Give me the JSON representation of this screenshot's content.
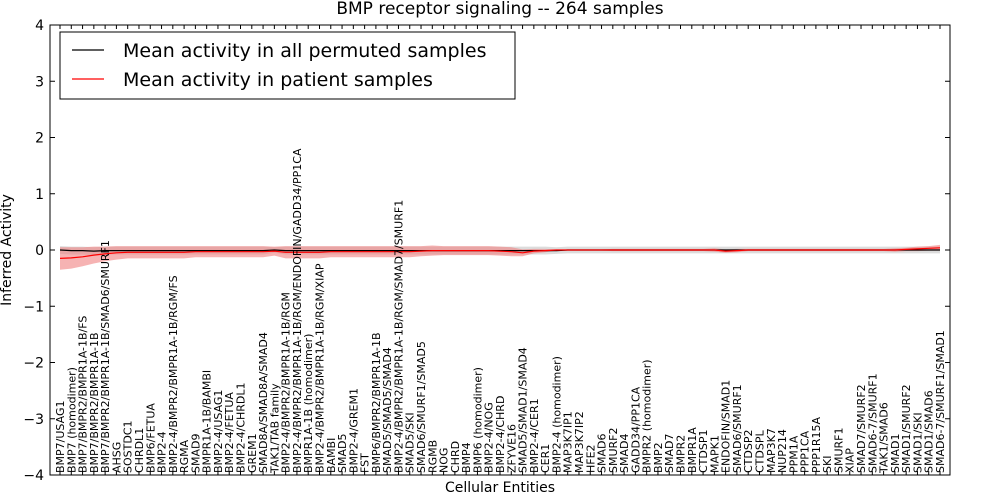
{
  "chart_data": {
    "type": "line",
    "title": "BMP receptor signaling -- 264 samples",
    "xlabel": "Cellular Entities",
    "ylabel": "Inferred Activity",
    "ylim": [
      -4,
      4
    ],
    "yticks": [
      -4,
      -3,
      -2,
      -1,
      0,
      1,
      2,
      3,
      4
    ],
    "legend_position": "top-left",
    "categories": [
      "BMP7/USAG1",
      "BMP7 (homodimer)",
      "BMP7/BMPR2/BMPR1A-1B/FS",
      "BMP7/BMPR2/BMPR1A-1B",
      "BMP7/BMPR2/BMPR1A-1B/SMAD6/SMURF1",
      "AHSG",
      "SOSTDC1",
      "CHRDL1",
      "BMP6/FETUA",
      "BMP2-4",
      "BMP2-4/BMPR2/BMPR1A-1B/RGM/FS",
      "RGMA",
      "SMAD9",
      "BMPR1A-1B/BAMBI",
      "BMP2-4/USAG1",
      "BMP2-4/FETUA",
      "BMP2-4/CHRDL1",
      "GREM1",
      "SMAD8A/SMAD8A/SMAD4",
      "TAK1/TAB family",
      "BMP2-4/BMPR2/BMPR1A-1B/RGM",
      "BMP2-4/BMPR2/BMPR1A-1B/RGM/ENDOFIN/GADD34/PP1CA",
      "BMPR1A-1B (homodimer)",
      "BMP2-4/BMPR2/BMPR1A-1B/RGM/XIAP",
      "BAMBI",
      "SMAD5",
      "BMP2-4/GREM1",
      "FST",
      "BMP6/BMPR2/BMPR1A-1B",
      "SMAD5/SMAD5/SMAD4",
      "BMP2-4/BMPR2/BMPR1A-1B/RGM/SMAD7/SMURF1",
      "SMAD5/SKI",
      "SMAD6/SMURF1/SMAD5",
      "RGMB",
      "NOG",
      "CHRD",
      "BMP4",
      "BMP6 (homodimer)",
      "BMP2-4/NOG",
      "BMP2-4/CHRD",
      "ZFYVE16",
      "SMAD5/SMAD1/SMAD4",
      "BMP2-4/CER1",
      "CER1",
      "BMP2-4 (homodimer)",
      "MAP3K7IP1",
      "MAP3K7IP2",
      "HFE2",
      "SMAD6",
      "SMURF2",
      "SMAD4",
      "GADD34/PP1CA",
      "BMPR2 (homodimer)",
      "BMP2",
      "SMAD7",
      "BMPR2",
      "BMPR1A",
      "CTDSP1",
      "MAPK1",
      "ENDOFIN/SMAD1",
      "SMAD6/SMURF1",
      "CTDSP2",
      "CTDSPL",
      "MAP3K7",
      "NUP214",
      "PPM1A",
      "PPP1CA",
      "PPP1R15A",
      "SKI",
      "SMURF1",
      "XIAP",
      "SMAD7/SMURF2",
      "SMAD6-7/SMURF1",
      "TAK1/SMAD6",
      "SMAD1",
      "SMAD1/SMURF2",
      "SMAD1/SKI",
      "SMAD1/SMAD6",
      "SMAD6-7/SMURF1/SMAD1"
    ],
    "series": [
      {
        "name": "Mean activity in all permuted samples",
        "color": "#000000",
        "band_color": "#c0c0c0",
        "values": [
          0.0,
          -0.01,
          -0.01,
          -0.02,
          -0.01,
          -0.01,
          -0.01,
          -0.01,
          -0.01,
          -0.01,
          -0.01,
          -0.01,
          -0.01,
          -0.01,
          -0.01,
          -0.01,
          -0.01,
          -0.01,
          -0.01,
          0.0,
          -0.01,
          -0.01,
          -0.01,
          -0.01,
          -0.01,
          -0.01,
          -0.01,
          -0.01,
          -0.01,
          -0.01,
          -0.01,
          -0.01,
          -0.01,
          -0.01,
          -0.01,
          -0.01,
          -0.01,
          -0.01,
          -0.01,
          -0.01,
          -0.01,
          -0.01,
          -0.01,
          -0.01,
          -0.01,
          0.0,
          0.0,
          0.0,
          0.0,
          0.0,
          0.0,
          0.0,
          0.0,
          0.0,
          0.0,
          0.0,
          0.0,
          0.0,
          0.0,
          0.0,
          0.0,
          0.0,
          0.0,
          0.0,
          0.0,
          0.0,
          0.0,
          0.0,
          0.0,
          0.0,
          0.0,
          0.0,
          0.0,
          0.0,
          0.0,
          0.0,
          0.0,
          0.0,
          0.0
        ],
        "std": [
          0.07,
          0.07,
          0.07,
          0.07,
          0.07,
          0.07,
          0.07,
          0.07,
          0.07,
          0.07,
          0.07,
          0.07,
          0.07,
          0.07,
          0.07,
          0.07,
          0.07,
          0.07,
          0.07,
          0.05,
          0.07,
          0.07,
          0.07,
          0.07,
          0.07,
          0.07,
          0.07,
          0.07,
          0.07,
          0.07,
          0.07,
          0.07,
          0.07,
          0.07,
          0.07,
          0.07,
          0.07,
          0.07,
          0.07,
          0.07,
          0.07,
          0.07,
          0.07,
          0.07,
          0.06,
          0.06,
          0.06,
          0.06,
          0.06,
          0.06,
          0.06,
          0.06,
          0.06,
          0.06,
          0.06,
          0.06,
          0.06,
          0.06,
          0.06,
          0.06,
          0.06,
          0.06,
          0.06,
          0.06,
          0.06,
          0.06,
          0.06,
          0.06,
          0.06,
          0.06,
          0.06,
          0.06,
          0.06,
          0.06,
          0.06,
          0.06,
          0.06,
          0.06,
          0.06
        ]
      },
      {
        "name": "Mean activity in patient samples",
        "color": "#ff0000",
        "band_color": "#f08080",
        "values": [
          -0.15,
          -0.14,
          -0.12,
          -0.09,
          -0.07,
          -0.05,
          -0.04,
          -0.04,
          -0.04,
          -0.04,
          -0.04,
          -0.04,
          -0.03,
          -0.03,
          -0.03,
          -0.03,
          -0.03,
          -0.03,
          -0.03,
          -0.02,
          -0.04,
          -0.04,
          -0.04,
          -0.04,
          -0.03,
          -0.03,
          -0.03,
          -0.03,
          -0.03,
          -0.03,
          -0.03,
          -0.03,
          -0.02,
          -0.01,
          -0.01,
          -0.01,
          -0.01,
          -0.01,
          -0.01,
          -0.02,
          -0.03,
          -0.05,
          -0.02,
          -0.01,
          0.0,
          0.0,
          0.0,
          0.0,
          0.0,
          0.0,
          0.0,
          0.0,
          0.0,
          0.0,
          0.0,
          0.0,
          0.0,
          0.0,
          0.0,
          -0.02,
          -0.01,
          0.0,
          0.0,
          0.0,
          0.0,
          0.0,
          0.0,
          0.0,
          0.0,
          0.0,
          0.0,
          0.0,
          0.0,
          0.0,
          0.0,
          0.01,
          0.02,
          0.03,
          0.04
        ],
        "std": [
          0.2,
          0.19,
          0.17,
          0.15,
          0.13,
          0.12,
          0.11,
          0.11,
          0.11,
          0.11,
          0.11,
          0.11,
          0.1,
          0.1,
          0.1,
          0.1,
          0.1,
          0.1,
          0.1,
          0.08,
          0.11,
          0.11,
          0.11,
          0.11,
          0.1,
          0.1,
          0.1,
          0.1,
          0.1,
          0.1,
          0.1,
          0.1,
          0.09,
          0.09,
          0.08,
          0.08,
          0.08,
          0.08,
          0.08,
          0.08,
          0.08,
          0.06,
          0.04,
          0.03,
          0.01,
          0.01,
          0.01,
          0.01,
          0.01,
          0.02,
          0.02,
          0.02,
          0.02,
          0.02,
          0.02,
          0.02,
          0.02,
          0.02,
          0.03,
          0.03,
          0.03,
          0.02,
          0.02,
          0.02,
          0.02,
          0.02,
          0.02,
          0.02,
          0.02,
          0.02,
          0.02,
          0.02,
          0.02,
          0.02,
          0.03,
          0.03,
          0.04,
          0.04,
          0.05
        ]
      }
    ]
  }
}
